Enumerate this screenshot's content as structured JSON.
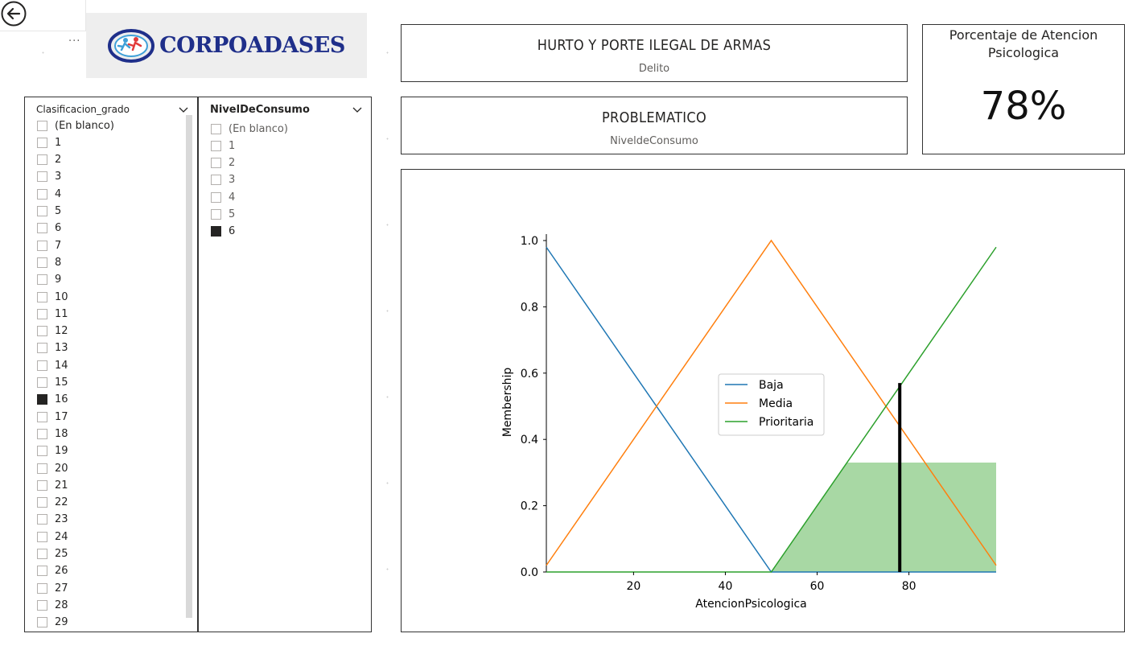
{
  "nav": {
    "back_icon": "back-arrow-circle-icon",
    "more_label": "..."
  },
  "logo": {
    "text": "CORPOADASES",
    "icon": "runners-logo-icon"
  },
  "slicer_clasificacion": {
    "title": "Clasificacion_grado",
    "items": [
      {
        "label": "(En blanco)",
        "checked": false
      },
      {
        "label": "1",
        "checked": false
      },
      {
        "label": "2",
        "checked": false
      },
      {
        "label": "3",
        "checked": false
      },
      {
        "label": "4",
        "checked": false
      },
      {
        "label": "5",
        "checked": false
      },
      {
        "label": "6",
        "checked": false
      },
      {
        "label": "7",
        "checked": false
      },
      {
        "label": "8",
        "checked": false
      },
      {
        "label": "9",
        "checked": false
      },
      {
        "label": "10",
        "checked": false
      },
      {
        "label": "11",
        "checked": false
      },
      {
        "label": "12",
        "checked": false
      },
      {
        "label": "13",
        "checked": false
      },
      {
        "label": "14",
        "checked": false
      },
      {
        "label": "15",
        "checked": false
      },
      {
        "label": "16",
        "checked": true
      },
      {
        "label": "17",
        "checked": false
      },
      {
        "label": "18",
        "checked": false
      },
      {
        "label": "19",
        "checked": false
      },
      {
        "label": "20",
        "checked": false
      },
      {
        "label": "21",
        "checked": false
      },
      {
        "label": "22",
        "checked": false
      },
      {
        "label": "23",
        "checked": false
      },
      {
        "label": "24",
        "checked": false
      },
      {
        "label": "25",
        "checked": false
      },
      {
        "label": "26",
        "checked": false
      },
      {
        "label": "27",
        "checked": false
      },
      {
        "label": "28",
        "checked": false
      },
      {
        "label": "29",
        "checked": false
      }
    ]
  },
  "slicer_nivel": {
    "title": "NivelDeConsumo",
    "items": [
      {
        "label": "(En blanco)",
        "checked": false
      },
      {
        "label": "1",
        "checked": false
      },
      {
        "label": "2",
        "checked": false
      },
      {
        "label": "3",
        "checked": false
      },
      {
        "label": "4",
        "checked": false
      },
      {
        "label": "5",
        "checked": false
      },
      {
        "label": "6",
        "checked": true
      }
    ]
  },
  "card_delito": {
    "value": "HURTO Y PORTE ILEGAL DE ARMAS",
    "label": "Delito"
  },
  "card_nivel": {
    "value": "PROBLEMATICO",
    "label": "NiveldeConsumo"
  },
  "kpi": {
    "label_line1": "Porcentaje de Atencion",
    "label_line2": "Psicologica",
    "value": "78%"
  },
  "colors": {
    "baja": "#1f77b4",
    "media": "#ff7f0e",
    "prioritaria": "#2ca02c",
    "fill": "#a8d8a4",
    "marker": "#000000"
  },
  "chart_data": {
    "type": "line",
    "xlabel": "AtencionPsicologica",
    "ylabel": "Membership",
    "xlim": [
      1,
      99
    ],
    "ylim": [
      0,
      1
    ],
    "x_ticks": [
      20,
      40,
      60,
      80
    ],
    "y_ticks": [
      "0.0",
      "0.2",
      "0.4",
      "0.6",
      "0.8",
      "1.0"
    ],
    "legend_position": "center",
    "series": [
      {
        "name": "Baja",
        "x": [
          1,
          50,
          99
        ],
        "y": [
          0.98,
          0.0,
          0.0
        ]
      },
      {
        "name": "Media",
        "x": [
          1,
          50,
          99
        ],
        "y": [
          0.02,
          1.0,
          0.02
        ]
      },
      {
        "name": "Prioritaria",
        "x": [
          1,
          50,
          99
        ],
        "y": [
          0.0,
          0.0,
          0.98
        ]
      }
    ],
    "activation": {
      "series": "Prioritaria",
      "level": 0.33,
      "x_range": [
        50,
        99
      ]
    },
    "crisp_output": {
      "x": 78,
      "y": 0.57
    }
  }
}
